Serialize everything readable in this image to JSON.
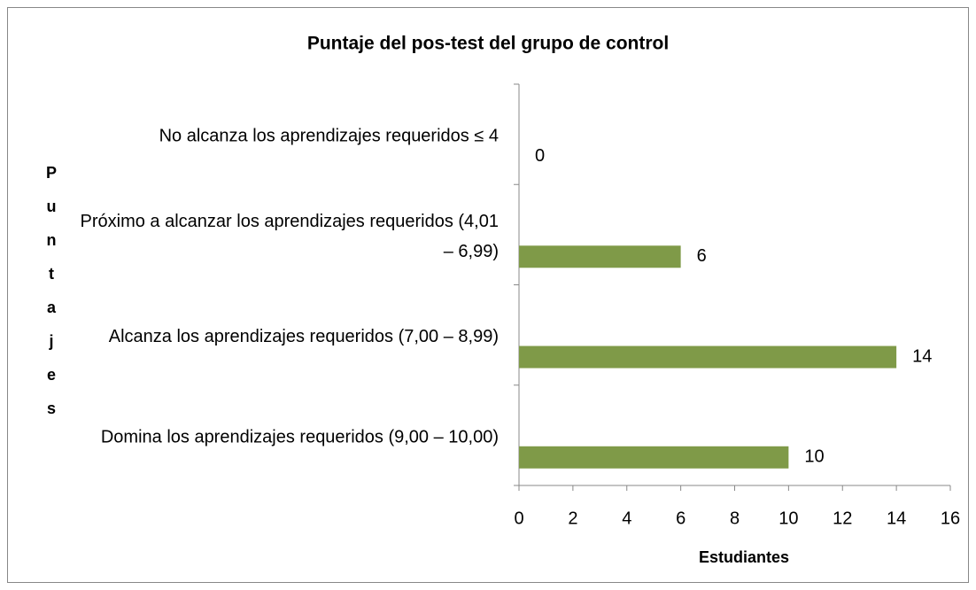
{
  "chart_data": {
    "type": "bar",
    "orientation": "horizontal",
    "title": "Puntaje del pos-test del grupo de control",
    "categories": [
      "No alcanza los aprendizajes requeridos  ≤ 4",
      "Próximo a alcanzar los aprendizajes requeridos (4,01 – 6,99)",
      "Alcanza los aprendizajes requeridos (7,00 – 8,99)",
      "Domina los aprendizajes requeridos  (9,00 – 10,00)"
    ],
    "values": [
      0,
      6,
      14,
      10
    ],
    "color": "#7f9a48",
    "xlim": [
      0,
      16
    ],
    "xticks": [
      0,
      2,
      4,
      6,
      8,
      10,
      12,
      14,
      16
    ],
    "x_label": "Estudiantes",
    "y_label": "Puntajes",
    "grid": false
  }
}
